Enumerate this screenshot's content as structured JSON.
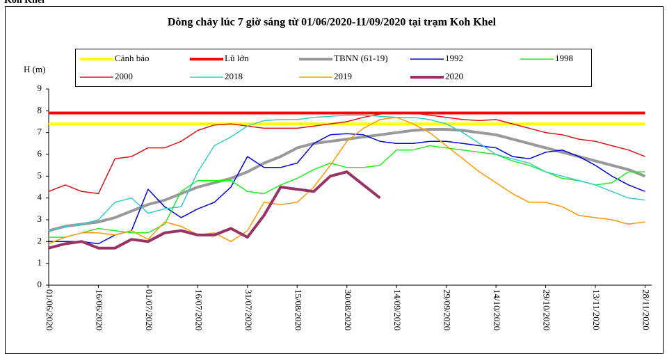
{
  "page_header": "Koh Khel",
  "chart_data": {
    "type": "line",
    "title": "Dòng chảy lúc 7 giờ sáng từ 01/06/2020-11/09/2020 tại trạm Koh Khel",
    "y_label": "H (m)",
    "x": [
      "01/06/2020",
      "06/06/2020",
      "11/06/2020",
      "16/06/2020",
      "21/06/2020",
      "26/06/2020",
      "01/07/2020",
      "06/07/2020",
      "11/07/2020",
      "16/07/2020",
      "21/07/2020",
      "26/07/2020",
      "31/07/2020",
      "05/08/2020",
      "10/08/2020",
      "15/08/2020",
      "20/08/2020",
      "25/08/2020",
      "30/08/2020",
      "04/09/2020",
      "09/09/2020",
      "14/09/2020",
      "19/09/2020",
      "24/09/2020",
      "29/09/2020",
      "04/10/2020",
      "09/10/2020",
      "14/10/2020",
      "19/10/2020",
      "24/10/2020",
      "29/10/2020",
      "03/11/2020",
      "08/11/2020",
      "13/11/2020",
      "18/11/2020",
      "23/11/2020",
      "28/11/2020"
    ],
    "xlim": [
      "01/06/2020",
      "30/11/2020"
    ],
    "xticks": [
      "01/06/2020",
      "16/06/2020",
      "01/07/2020",
      "16/07/2020",
      "31/07/2020",
      "15/08/2020",
      "30/08/2020",
      "14/09/2020",
      "29/09/2020",
      "14/10/2020",
      "29/10/2020",
      "13/11/2020",
      "28/11/2020"
    ],
    "ylim": [
      0,
      9
    ],
    "yticks": [
      0,
      1,
      2,
      3,
      4,
      5,
      6,
      7,
      8,
      9
    ],
    "grid": false,
    "series": [
      {
        "name": "Cảnh báo",
        "color": "#ffff00",
        "line_width": 4,
        "values": [
          7.4,
          7.4,
          7.4,
          7.4,
          7.4,
          7.4,
          7.4,
          7.4,
          7.4,
          7.4,
          7.4,
          7.4,
          7.4,
          7.4,
          7.4,
          7.4,
          7.4,
          7.4,
          7.4,
          7.4,
          7.4,
          7.4,
          7.4,
          7.4,
          7.4,
          7.4,
          7.4,
          7.4,
          7.4,
          7.4,
          7.4,
          7.4,
          7.4,
          7.4,
          7.4,
          7.4,
          7.4
        ]
      },
      {
        "name": "Lũ lớn",
        "color": "#ff0000",
        "line_width": 4,
        "values": [
          7.9,
          7.9,
          7.9,
          7.9,
          7.9,
          7.9,
          7.9,
          7.9,
          7.9,
          7.9,
          7.9,
          7.9,
          7.9,
          7.9,
          7.9,
          7.9,
          7.9,
          7.9,
          7.9,
          7.9,
          7.9,
          7.9,
          7.9,
          7.9,
          7.9,
          7.9,
          7.9,
          7.9,
          7.9,
          7.9,
          7.9,
          7.9,
          7.9,
          7.9,
          7.9,
          7.9,
          7.9
        ]
      },
      {
        "name": "TBNN (61-19)",
        "color": "#999999",
        "line_width": 4,
        "values": [
          2.5,
          2.7,
          2.8,
          2.9,
          3.1,
          3.4,
          3.7,
          3.9,
          4.2,
          4.5,
          4.7,
          4.9,
          5.2,
          5.6,
          5.9,
          6.3,
          6.5,
          6.6,
          6.7,
          6.8,
          6.9,
          7.0,
          7.1,
          7.15,
          7.15,
          7.1,
          7.0,
          6.9,
          6.7,
          6.5,
          6.3,
          6.1,
          5.9,
          5.7,
          5.5,
          5.3,
          5.0
        ]
      },
      {
        "name": "1992",
        "color": "#0000dd",
        "line_width": 1.5,
        "values": [
          2.0,
          2.0,
          2.0,
          1.9,
          2.3,
          2.5,
          4.4,
          3.6,
          3.1,
          3.5,
          3.8,
          4.5,
          5.9,
          5.4,
          5.4,
          5.6,
          6.5,
          6.9,
          6.95,
          6.9,
          6.6,
          6.5,
          6.5,
          6.6,
          6.6,
          6.5,
          6.4,
          6.3,
          5.9,
          5.8,
          6.1,
          6.2,
          5.9,
          5.5,
          5.0,
          4.6,
          4.3
        ]
      },
      {
        "name": "1998",
        "color": "#22ee22",
        "line_width": 1.5,
        "values": [
          2.2,
          2.2,
          2.4,
          2.6,
          2.5,
          2.4,
          2.4,
          2.8,
          4.3,
          4.8,
          4.8,
          4.8,
          4.3,
          4.2,
          4.6,
          4.9,
          5.3,
          5.6,
          5.4,
          5.4,
          5.5,
          6.2,
          6.2,
          6.4,
          6.3,
          6.2,
          6.1,
          6.0,
          5.7,
          5.5,
          5.2,
          4.9,
          4.8,
          4.6,
          4.7,
          5.2,
          5.2
        ]
      },
      {
        "name": "2000",
        "color": "#dd1111",
        "line_width": 1.5,
        "values": [
          4.3,
          4.6,
          4.3,
          4.2,
          5.8,
          5.9,
          6.3,
          6.3,
          6.6,
          7.1,
          7.35,
          7.4,
          7.3,
          7.2,
          7.2,
          7.2,
          7.3,
          7.4,
          7.5,
          7.7,
          7.85,
          7.9,
          7.9,
          7.8,
          7.7,
          7.6,
          7.55,
          7.6,
          7.4,
          7.2,
          7.0,
          6.9,
          6.7,
          6.6,
          6.4,
          6.2,
          5.9
        ]
      },
      {
        "name": "2018",
        "color": "#33cccc",
        "line_width": 1.5,
        "values": [
          2.5,
          2.7,
          2.8,
          3.0,
          3.8,
          4.0,
          3.3,
          3.5,
          3.6,
          5.2,
          6.4,
          6.8,
          7.3,
          7.55,
          7.6,
          7.6,
          7.7,
          7.75,
          7.8,
          7.8,
          7.75,
          7.7,
          7.7,
          7.6,
          7.4,
          7.0,
          6.5,
          6.0,
          5.8,
          5.6,
          5.2,
          5.0,
          4.8,
          4.6,
          4.3,
          4.0,
          3.9
        ]
      },
      {
        "name": "2019",
        "color": "#ff9900",
        "line_width": 1.5,
        "values": [
          1.9,
          2.2,
          2.4,
          2.4,
          2.3,
          2.5,
          2.1,
          2.9,
          2.7,
          2.3,
          2.4,
          2.0,
          2.5,
          3.8,
          3.7,
          3.8,
          4.5,
          5.5,
          6.6,
          7.2,
          7.6,
          7.7,
          7.4,
          7.0,
          6.4,
          5.8,
          5.2,
          4.7,
          4.2,
          3.8,
          3.8,
          3.6,
          3.2,
          3.1,
          3.0,
          2.8,
          2.9
        ]
      },
      {
        "name": "2020",
        "color": "#993366",
        "line_width": 4,
        "values": [
          1.7,
          1.9,
          2.0,
          1.7,
          1.7,
          2.1,
          2.0,
          2.4,
          2.5,
          2.3,
          2.3,
          2.6,
          2.2,
          3.2,
          4.5,
          4.4,
          4.3,
          5.0,
          5.2,
          4.6,
          4.0,
          null,
          null,
          null,
          null,
          null,
          null,
          null,
          null,
          null,
          null,
          null,
          null,
          null,
          null,
          null,
          null
        ]
      }
    ]
  }
}
